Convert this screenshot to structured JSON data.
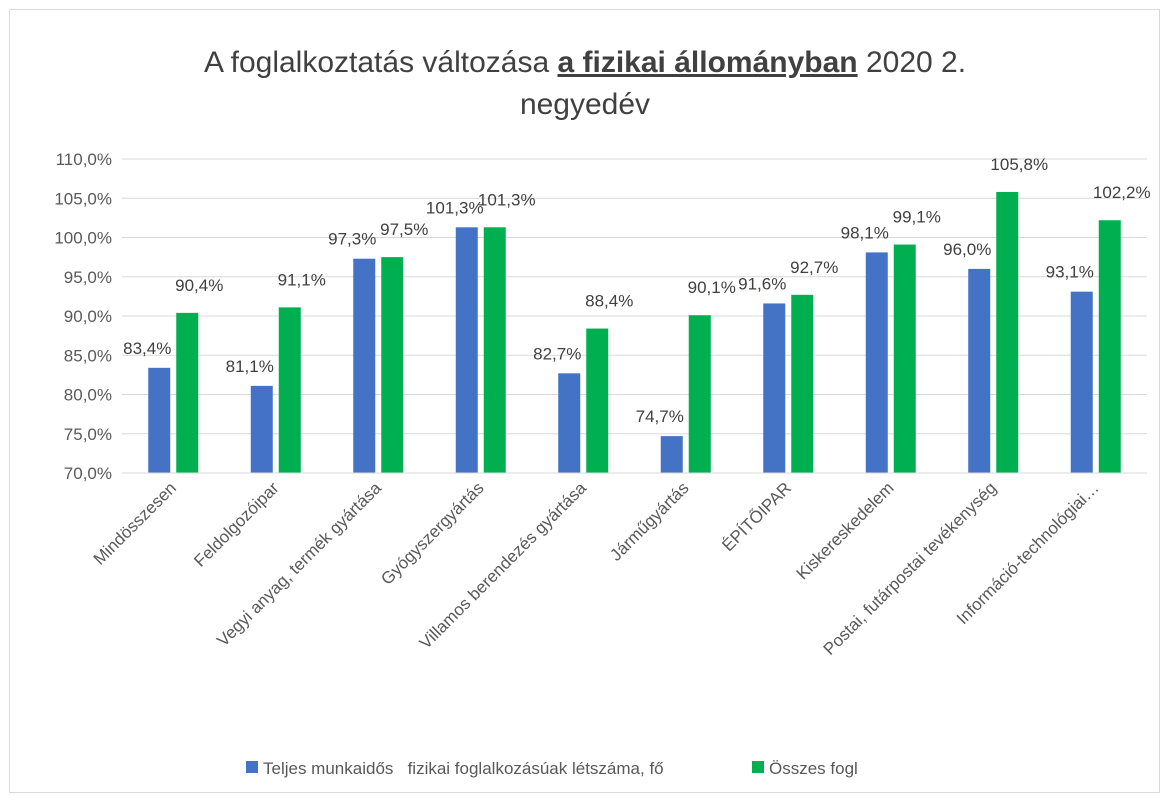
{
  "chart_data": {
    "type": "bar",
    "title_parts": [
      "A foglalkoztatás változása",
      "a fizikai állományban",
      "2020 2.",
      "negyedév"
    ],
    "categories": [
      "Mindösszesen",
      "Feldolgozóipar",
      "Vegyi anyag, termék gyártása",
      "Gyógyszergyártás",
      "Villamos berendezés gyártása",
      "Járműgyártás",
      "ÉPÍTŐIPAR",
      "Kiskereskedelem",
      "Postai, futárpostai tevékenység",
      "Információ-technológiai…"
    ],
    "series": [
      {
        "name": "Teljes munkaidős   fizikai foglalkozásúak létszáma, fő",
        "color": "#4472c4",
        "values": [
          83.4,
          81.1,
          97.3,
          101.3,
          82.7,
          74.7,
          91.6,
          98.1,
          96.0,
          93.1
        ],
        "value_labels": [
          "83,4%",
          "81,1%",
          "97,3%",
          "101,3%",
          "82,7%",
          "74,7%",
          "91,6%",
          "98,1%",
          "96,0%",
          "93,1%"
        ]
      },
      {
        "name": "Összes fogl",
        "color": "#00b050",
        "values": [
          90.4,
          91.1,
          97.5,
          101.3,
          88.4,
          90.1,
          92.7,
          99.1,
          105.8,
          102.2
        ],
        "value_labels": [
          "90,4%",
          "91,1%",
          "97,5%",
          "101,3%",
          "88,4%",
          "90,1%",
          "92,7%",
          "99,1%",
          "105,8%",
          "102,2%"
        ]
      }
    ],
    "ylim": [
      70,
      110
    ],
    "yticks": [
      {
        "value": 70,
        "label": "70,0%"
      },
      {
        "value": 75,
        "label": "75,0%"
      },
      {
        "value": 80,
        "label": "80,0%"
      },
      {
        "value": 85,
        "label": "85,0%"
      },
      {
        "value": 90,
        "label": "90,0%"
      },
      {
        "value": 95,
        "label": "95,0%"
      },
      {
        "value": 100,
        "label": "100,0%"
      },
      {
        "value": 105,
        "label": "105,0%"
      },
      {
        "value": 110,
        "label": "110,0%"
      }
    ],
    "grid": true,
    "legend": "bottom"
  }
}
